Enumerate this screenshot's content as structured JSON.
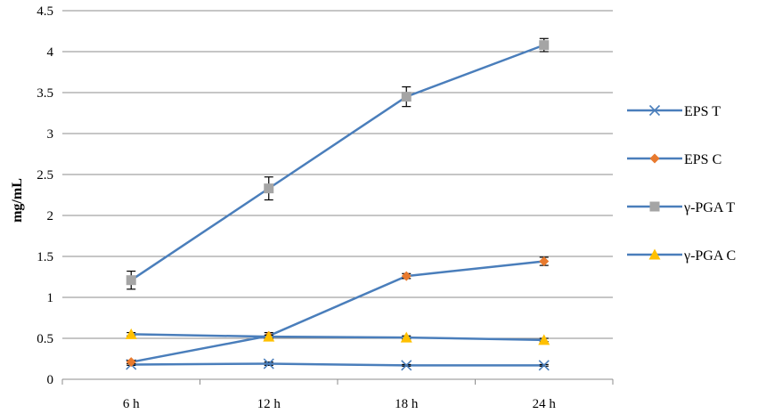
{
  "chart_data": {
    "type": "line",
    "title": "",
    "xlabel": "",
    "ylabel": "mg/mL",
    "categories": [
      "6 h",
      "12 h",
      "18 h",
      "24 h"
    ],
    "ylim": [
      0,
      4.5
    ],
    "yticks": [
      "0",
      "0.5",
      "1",
      "1.5",
      "2",
      "2.5",
      "3",
      "3.5",
      "4",
      "4.5"
    ],
    "grid": "horizontal",
    "legend_position": "right",
    "series": [
      {
        "name": "EPS T",
        "values": [
          0.18,
          0.19,
          0.17,
          0.17
        ],
        "errors": [
          0.01,
          0.02,
          0.01,
          0.01
        ],
        "marker": "x",
        "line_color": "#4a7ebb",
        "marker_color": "#4a7ebb"
      },
      {
        "name": "EPS C",
        "values": [
          0.21,
          0.53,
          1.26,
          1.44
        ],
        "errors": [
          0.02,
          0.04,
          0.03,
          0.05
        ],
        "marker": "diamond",
        "line_color": "#4a7ebb",
        "marker_color": "#e87a2e"
      },
      {
        "name": "γ-PGA  T",
        "values": [
          1.21,
          2.33,
          3.45,
          4.08
        ],
        "errors": [
          0.11,
          0.14,
          0.12,
          0.08
        ],
        "marker": "square",
        "line_color": "#4a7ebb",
        "marker_color": "#a5a5a5"
      },
      {
        "name": "γ-PGA  C",
        "values": [
          0.55,
          0.52,
          0.51,
          0.48
        ],
        "errors": [
          0.02,
          0.02,
          0.02,
          0.02
        ],
        "marker": "triangle",
        "line_color": "#4a7ebb",
        "marker_color": "#ffc000"
      }
    ]
  }
}
